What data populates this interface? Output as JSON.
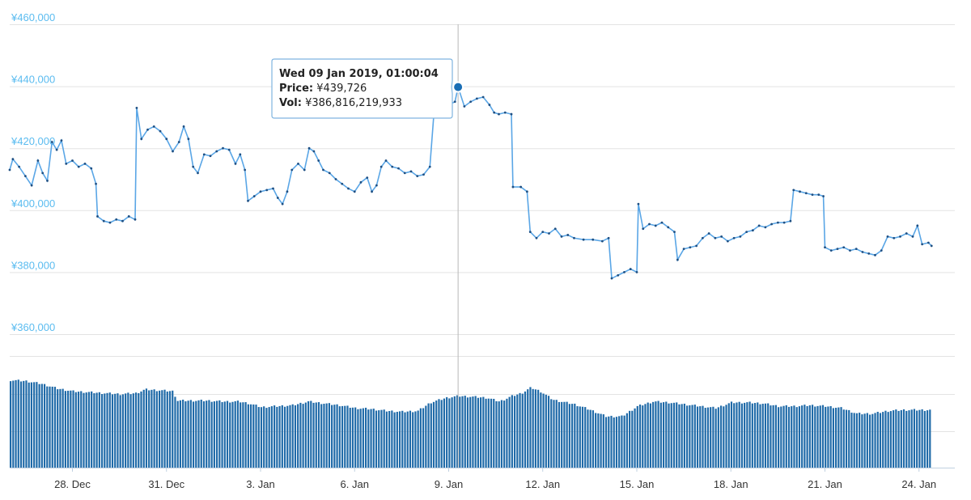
{
  "chart_data": {
    "type": "line",
    "title": "",
    "xlabel": "",
    "ylabel": "",
    "ylim": [
      360000,
      460000
    ],
    "price_ticks": [
      "¥460,000",
      "¥440,000",
      "¥420,000",
      "¥400,000",
      "¥380,000",
      "¥360,000"
    ],
    "price_tick_values": [
      460000,
      440000,
      420000,
      400000,
      380000,
      360000
    ],
    "x_ticks": [
      "28. Dec",
      "31. Dec",
      "3. Jan",
      "6. Jan",
      "9. Jan",
      "12. Jan",
      "15. Jan",
      "18. Jan",
      "21. Jan",
      "24. Jan"
    ],
    "x_tick_days": [
      2,
      5,
      8,
      11,
      14,
      17,
      20,
      23,
      26,
      29
    ],
    "x_unit": "days (26 Dec 2018 = 0)",
    "colors": {
      "line": "#5aa6e6",
      "marker": "#1f4f82",
      "volume": "#1f6aa8",
      "grid": "#e3e3e3",
      "axis_label": "#5bbcf0",
      "crosshair": "#b8b8b8",
      "tooltip_border": "#7fb5e0",
      "tooltip_marker": "#1a6eb5"
    },
    "series": [
      {
        "name": "Price",
        "points": [
          [
            0.0,
            413000
          ],
          [
            0.1,
            416500
          ],
          [
            0.3,
            414000
          ],
          [
            0.5,
            411000
          ],
          [
            0.7,
            408000
          ],
          [
            0.9,
            416000
          ],
          [
            1.05,
            412000
          ],
          [
            1.2,
            409500
          ],
          [
            1.35,
            422000
          ],
          [
            1.5,
            419500
          ],
          [
            1.65,
            422500
          ],
          [
            1.8,
            415000
          ],
          [
            2.0,
            416000
          ],
          [
            2.2,
            414000
          ],
          [
            2.4,
            415000
          ],
          [
            2.6,
            413500
          ],
          [
            2.75,
            408500
          ],
          [
            2.8,
            398000
          ],
          [
            3.0,
            396500
          ],
          [
            3.2,
            396000
          ],
          [
            3.4,
            397000
          ],
          [
            3.6,
            396500
          ],
          [
            3.8,
            398000
          ],
          [
            4.0,
            397000
          ],
          [
            4.05,
            433000
          ],
          [
            4.2,
            423000
          ],
          [
            4.4,
            426000
          ],
          [
            4.6,
            427000
          ],
          [
            4.8,
            425500
          ],
          [
            5.0,
            423000
          ],
          [
            5.2,
            419000
          ],
          [
            5.4,
            422000
          ],
          [
            5.55,
            427000
          ],
          [
            5.7,
            423000
          ],
          [
            5.85,
            414000
          ],
          [
            6.0,
            412000
          ],
          [
            6.2,
            418000
          ],
          [
            6.4,
            417500
          ],
          [
            6.6,
            419000
          ],
          [
            6.8,
            420000
          ],
          [
            7.0,
            419500
          ],
          [
            7.2,
            415000
          ],
          [
            7.35,
            418000
          ],
          [
            7.5,
            413000
          ],
          [
            7.6,
            403000
          ],
          [
            7.8,
            404500
          ],
          [
            8.0,
            406000
          ],
          [
            8.2,
            406500
          ],
          [
            8.4,
            407000
          ],
          [
            8.55,
            404000
          ],
          [
            8.7,
            402000
          ],
          [
            8.85,
            406000
          ],
          [
            9.0,
            413000
          ],
          [
            9.2,
            415000
          ],
          [
            9.4,
            413000
          ],
          [
            9.55,
            420000
          ],
          [
            9.7,
            419000
          ],
          [
            9.85,
            416000
          ],
          [
            10.0,
            413000
          ],
          [
            10.2,
            412000
          ],
          [
            10.4,
            410000
          ],
          [
            10.6,
            408500
          ],
          [
            10.8,
            407000
          ],
          [
            11.0,
            406000
          ],
          [
            11.2,
            409000
          ],
          [
            11.4,
            410500
          ],
          [
            11.55,
            406000
          ],
          [
            11.7,
            408000
          ],
          [
            11.85,
            414000
          ],
          [
            12.0,
            416000
          ],
          [
            12.2,
            414000
          ],
          [
            12.4,
            413500
          ],
          [
            12.6,
            412000
          ],
          [
            12.8,
            412500
          ],
          [
            13.0,
            411000
          ],
          [
            13.2,
            411500
          ],
          [
            13.4,
            414000
          ],
          [
            13.55,
            434000
          ],
          [
            13.7,
            433000
          ],
          [
            13.9,
            432000
          ],
          [
            14.0,
            434000
          ],
          [
            14.2,
            435000
          ],
          [
            14.3,
            439726
          ],
          [
            14.5,
            433500
          ],
          [
            14.7,
            435000
          ],
          [
            14.9,
            436000
          ],
          [
            15.1,
            436500
          ],
          [
            15.3,
            434000
          ],
          [
            15.45,
            431500
          ],
          [
            15.6,
            431000
          ],
          [
            15.8,
            431500
          ],
          [
            16.0,
            431000
          ],
          [
            16.05,
            407500
          ],
          [
            16.3,
            407500
          ],
          [
            16.5,
            406000
          ],
          [
            16.6,
            393000
          ],
          [
            16.8,
            391000
          ],
          [
            17.0,
            393000
          ],
          [
            17.2,
            392500
          ],
          [
            17.4,
            394000
          ],
          [
            17.6,
            391500
          ],
          [
            17.8,
            392000
          ],
          [
            18.0,
            391000
          ],
          [
            18.3,
            390500
          ],
          [
            18.6,
            390500
          ],
          [
            18.9,
            390000
          ],
          [
            19.1,
            391000
          ],
          [
            19.2,
            378000
          ],
          [
            19.4,
            379000
          ],
          [
            19.6,
            380000
          ],
          [
            19.8,
            381000
          ],
          [
            20.0,
            380000
          ],
          [
            20.05,
            402000
          ],
          [
            20.2,
            394000
          ],
          [
            20.4,
            395500
          ],
          [
            20.6,
            395000
          ],
          [
            20.8,
            396000
          ],
          [
            21.0,
            394500
          ],
          [
            21.2,
            393000
          ],
          [
            21.3,
            384000
          ],
          [
            21.5,
            387500
          ],
          [
            21.7,
            388000
          ],
          [
            21.9,
            388500
          ],
          [
            22.1,
            391000
          ],
          [
            22.3,
            392500
          ],
          [
            22.5,
            391000
          ],
          [
            22.7,
            391500
          ],
          [
            22.9,
            390000
          ],
          [
            23.1,
            391000
          ],
          [
            23.3,
            391500
          ],
          [
            23.5,
            393000
          ],
          [
            23.7,
            393500
          ],
          [
            23.9,
            395000
          ],
          [
            24.1,
            394500
          ],
          [
            24.3,
            395500
          ],
          [
            24.5,
            396000
          ],
          [
            24.7,
            396000
          ],
          [
            24.9,
            396500
          ],
          [
            25.0,
            406500
          ],
          [
            25.2,
            406000
          ],
          [
            25.4,
            405500
          ],
          [
            25.6,
            405000
          ],
          [
            25.8,
            405000
          ],
          [
            25.95,
            404500
          ],
          [
            26.0,
            388000
          ],
          [
            26.2,
            387000
          ],
          [
            26.4,
            387500
          ],
          [
            26.6,
            388000
          ],
          [
            26.8,
            387000
          ],
          [
            27.0,
            387500
          ],
          [
            27.2,
            386500
          ],
          [
            27.4,
            386000
          ],
          [
            27.6,
            385500
          ],
          [
            27.8,
            387000
          ],
          [
            28.0,
            391500
          ],
          [
            28.2,
            391000
          ],
          [
            28.4,
            391500
          ],
          [
            28.6,
            392500
          ],
          [
            28.8,
            391500
          ],
          [
            28.95,
            395000
          ],
          [
            29.1,
            389000
          ],
          [
            29.3,
            389500
          ],
          [
            29.4,
            388500
          ]
        ]
      },
      {
        "name": "Vol",
        "segments": [
          [
            0.0,
            94
          ],
          [
            0.5,
            93
          ],
          [
            1.0,
            90
          ],
          [
            1.5,
            85
          ],
          [
            2.0,
            82
          ],
          [
            2.5,
            81
          ],
          [
            3.0,
            80
          ],
          [
            3.5,
            79
          ],
          [
            4.0,
            80
          ],
          [
            4.3,
            84
          ],
          [
            4.8,
            83
          ],
          [
            5.2,
            82
          ],
          [
            5.3,
            72
          ],
          [
            5.8,
            72
          ],
          [
            6.3,
            72
          ],
          [
            6.8,
            71
          ],
          [
            7.3,
            71
          ],
          [
            7.6,
            69
          ],
          [
            8.0,
            65
          ],
          [
            8.5,
            66
          ],
          [
            9.0,
            67
          ],
          [
            9.5,
            71
          ],
          [
            10.0,
            69
          ],
          [
            10.5,
            67
          ],
          [
            11.0,
            64
          ],
          [
            11.5,
            63
          ],
          [
            12.0,
            61
          ],
          [
            12.5,
            60
          ],
          [
            13.0,
            61
          ],
          [
            13.4,
            70
          ],
          [
            13.9,
            75
          ],
          [
            14.3,
            77
          ],
          [
            14.8,
            76
          ],
          [
            15.2,
            75
          ],
          [
            15.6,
            71
          ],
          [
            16.0,
            77
          ],
          [
            16.3,
            80
          ],
          [
            16.6,
            86
          ],
          [
            16.9,
            82
          ],
          [
            17.3,
            73
          ],
          [
            17.7,
            70
          ],
          [
            18.0,
            68
          ],
          [
            18.5,
            62
          ],
          [
            19.0,
            55
          ],
          [
            19.5,
            55
          ],
          [
            20.0,
            66
          ],
          [
            20.5,
            71
          ],
          [
            21.0,
            70
          ],
          [
            21.5,
            68
          ],
          [
            22.0,
            66
          ],
          [
            22.5,
            64
          ],
          [
            23.0,
            70
          ],
          [
            23.5,
            70
          ],
          [
            24.0,
            69
          ],
          [
            24.5,
            66
          ],
          [
            25.0,
            66
          ],
          [
            25.5,
            67
          ],
          [
            26.0,
            66
          ],
          [
            26.5,
            64
          ],
          [
            27.0,
            58
          ],
          [
            27.5,
            58
          ],
          [
            28.0,
            61
          ],
          [
            28.5,
            62
          ],
          [
            29.0,
            62
          ],
          [
            29.4,
            62
          ]
        ],
        "max_display": 120
      }
    ],
    "tooltip": {
      "date": "Wed 09 Jan 2019, 01:00:04",
      "price_label": "Price:",
      "price_value": "¥439,726",
      "vol_label": "Vol:",
      "vol_value": "¥386,816,219,933"
    },
    "grid": true
  }
}
